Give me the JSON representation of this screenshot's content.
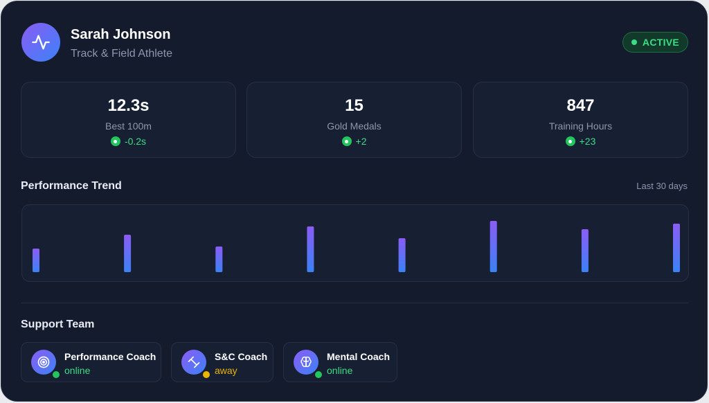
{
  "profile": {
    "name": "Sarah Johnson",
    "role": "Track & Field Athlete",
    "status": "ACTIVE"
  },
  "stats": [
    {
      "value": "12.3s",
      "label": "Best 100m",
      "delta": "-0.2s"
    },
    {
      "value": "15",
      "label": "Gold Medals",
      "delta": "+2"
    },
    {
      "value": "847",
      "label": "Training Hours",
      "delta": "+23"
    }
  ],
  "trend": {
    "title": "Performance Trend",
    "period": "Last 30 days"
  },
  "chart_data": {
    "type": "bar",
    "categories": [
      "",
      "",
      "",
      "",
      "",
      "",
      "",
      ""
    ],
    "values": [
      34,
      54,
      37,
      66,
      49,
      74,
      62,
      70
    ],
    "ylim": [
      0,
      100
    ],
    "grid": false,
    "title": "",
    "xlabel": "",
    "ylabel": ""
  },
  "team": {
    "title": "Support Team",
    "members": [
      {
        "name": "Performance Coach",
        "status": "online",
        "icon": "target-icon",
        "status_color": "#22c55e"
      },
      {
        "name": "S&C Coach",
        "status": "away",
        "icon": "dumbbell-icon",
        "status_color": "#eab308"
      },
      {
        "name": "Mental Coach",
        "status": "online",
        "icon": "brain-icon",
        "status_color": "#22c55e"
      }
    ]
  },
  "colors": {
    "background": "#141b2d",
    "accent_start": "#8b5cf6",
    "accent_end": "#3b82f6",
    "positive": "#3ddc84"
  }
}
